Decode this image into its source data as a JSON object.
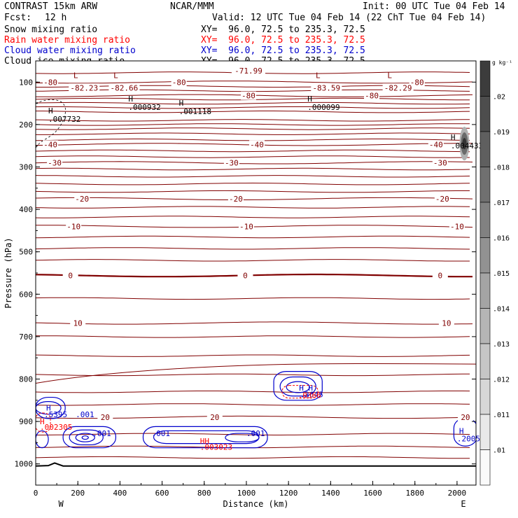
{
  "header": {
    "model": "CONTRAST 15km ARW",
    "forecast_label": "Fcst:",
    "forecast_value": "12 h",
    "org": "NCAR/MMM",
    "init": "Init: 00 UTC Tue 04 Feb 14",
    "valid": "Valid: 12 UTC Tue 04 Feb 14 (22 ChT Tue 04 Feb 14)"
  },
  "legend": [
    {
      "name": "Snow mixing ratio",
      "xy": "XY=  96.0, 72.5 to 235.3, 72.5",
      "color": "#000000"
    },
    {
      "name": "Rain water mixing ratio",
      "xy": "XY=  96.0, 72.5 to 235.3, 72.5",
      "color": "#ff0000"
    },
    {
      "name": "Cloud water mixing ratio",
      "xy": "XY=  96.0, 72.5 to 235.3, 72.5",
      "color": "#0000cc"
    },
    {
      "name": "Cloud ice mixing ratio",
      "xy": "XY=  96.0, 72.5 to 235.3, 72.5",
      "color": "#000000"
    }
  ],
  "chart_data": {
    "type": "contour",
    "xlabel": "Distance (km)",
    "ylabel": "Pressure (hPa)",
    "xlim": [
      0,
      2090
    ],
    "ylim": [
      1050,
      50
    ],
    "xticks": [
      0,
      200,
      400,
      600,
      800,
      1000,
      1200,
      1400,
      1600,
      1800,
      2000
    ],
    "yticks": [
      100,
      200,
      300,
      400,
      500,
      600,
      700,
      800,
      900,
      1000
    ],
    "end_labels": {
      "left": "W",
      "right": "E"
    },
    "temperature_contours": {
      "color": "#800000",
      "levels": [
        {
          "p": 100,
          "labels": [
            {
              "x": 70,
              "t": "-80"
            },
            {
              "x": 680,
              "t": "-80"
            },
            {
              "x": 1810,
              "t": "-80"
            }
          ],
          "lows": [
            {
              "x": 230,
              "t": "-82.23"
            },
            {
              "x": 420,
              "t": "-82.66"
            },
            {
              "x": 1380,
              "t": "-83.59"
            },
            {
              "x": 1720,
              "t": "-82.29"
            }
          ]
        },
        {
          "p": 132,
          "labels": [
            {
              "x": 1010,
              "t": "-80"
            },
            {
              "x": 1595,
              "t": "-80"
            }
          ],
          "lows": []
        },
        {
          "p": 247,
          "labels": [
            {
              "x": 70,
              "t": "-40"
            },
            {
              "x": 1050,
              "t": "-40"
            },
            {
              "x": 1900,
              "t": "-40"
            }
          ],
          "lows": []
        },
        {
          "p": 290,
          "labels": [
            {
              "x": 90,
              "t": "-30"
            },
            {
              "x": 930,
              "t": "-30"
            },
            {
              "x": 1920,
              "t": "-30"
            }
          ],
          "lows": []
        },
        {
          "p": 375,
          "labels": [
            {
              "x": 220,
              "t": "-20"
            },
            {
              "x": 950,
              "t": "-20"
            },
            {
              "x": 1930,
              "t": "-20"
            }
          ],
          "lows": []
        },
        {
          "p": 440,
          "labels": [
            {
              "x": 180,
              "t": "-10"
            },
            {
              "x": 1000,
              "t": "-10"
            },
            {
              "x": 2000,
              "t": "-10"
            }
          ],
          "lows": []
        },
        {
          "p": 556,
          "labels": [
            {
              "x": 165,
              "t": "0"
            },
            {
              "x": 995,
              "t": "0"
            },
            {
              "x": 1920,
              "t": "0"
            }
          ],
          "lows": []
        },
        {
          "p": 668,
          "labels": [
            {
              "x": 200,
              "t": "10"
            },
            {
              "x": 1950,
              "t": "10"
            }
          ],
          "lows": []
        },
        {
          "p": 890,
          "labels": [
            {
              "x": 330,
              "t": "20"
            },
            {
              "x": 850,
              "t": "20"
            },
            {
              "x": 2040,
              "t": "20"
            }
          ],
          "lows": []
        }
      ],
      "top_label": {
        "x": 1010,
        "p": 78,
        "t": "-71.99"
      }
    },
    "cloud_ice_highs": [
      {
        "x": 60,
        "p": 180,
        "t": ".007732"
      },
      {
        "x": 440,
        "p": 152,
        "t": ".000932"
      },
      {
        "x": 680,
        "p": 162,
        "t": ".001118"
      },
      {
        "x": 1290,
        "p": 152,
        "t": ".000099"
      },
      {
        "x": 1970,
        "p": 243,
        "t": ".004433"
      }
    ],
    "cloud_water": {
      "color": "#0000cc",
      "labels": [
        {
          "x": 50,
          "p": 868,
          "t": "H"
        },
        {
          "x": 40,
          "p": 883,
          "t": ".5395"
        },
        {
          "x": 190,
          "p": 883,
          "t": ".001"
        },
        {
          "x": 270,
          "p": 928,
          "t": ".001"
        },
        {
          "x": 550,
          "p": 928,
          "t": ".001"
        },
        {
          "x": 1000,
          "p": 928,
          "t": ".001"
        },
        {
          "x": 1250,
          "p": 821,
          "t": "H H"
        },
        {
          "x": 1255,
          "p": 836,
          "t": ".3645"
        },
        {
          "x": 2010,
          "p": 922,
          "t": "H"
        },
        {
          "x": 2000,
          "p": 940,
          "t": ".2005"
        }
      ]
    },
    "rain_water": {
      "color": "#ff0000",
      "labels": [
        {
          "x": 20,
          "p": 900,
          "t": "H"
        },
        {
          "x": 20,
          "p": 913,
          "t": ".002305"
        },
        {
          "x": 780,
          "p": 946,
          "t": "HH"
        },
        {
          "x": 780,
          "p": 960,
          "t": ".003023"
        },
        {
          "x": 1245,
          "p": 838,
          "t": ".0366"
        }
      ]
    },
    "snow_shading": {
      "colorbar_ticks": [
        ".02",
        ".019",
        ".018",
        ".017",
        ".016",
        ".015",
        ".014",
        ".013",
        ".012",
        ".011",
        ".01"
      ],
      "unit": "g kg⁻¹"
    }
  }
}
